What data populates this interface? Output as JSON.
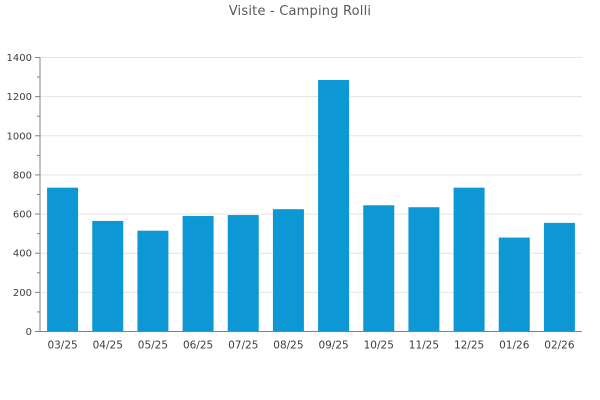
{
  "chart_data": {
    "type": "bar",
    "title": "Visite - Camping Rolli",
    "categories": [
      "03/25",
      "04/25",
      "05/25",
      "06/25",
      "07/25",
      "08/25",
      "09/25",
      "10/25",
      "11/25",
      "12/25",
      "01/26",
      "02/26"
    ],
    "values": [
      735,
      565,
      515,
      590,
      595,
      625,
      1285,
      645,
      635,
      735,
      480,
      555
    ],
    "xlabel": "",
    "ylabel": "",
    "ylim": [
      0,
      1400
    ],
    "ytick_step": 200,
    "yminor_tick_step": 100,
    "grid": "horizontal-major",
    "legend_position": "none",
    "colors": {
      "bar": "#0d98d5",
      "grid": "#e4e4e4",
      "axis": "#808080",
      "tick_label": "#3d3d3d",
      "title": "#595959",
      "background": "#ffffff"
    }
  }
}
